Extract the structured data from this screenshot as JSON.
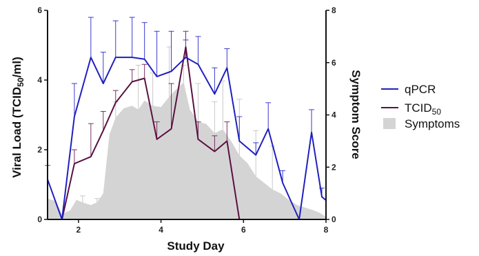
{
  "chart_data": {
    "type": "line",
    "xlabel": "Study Day",
    "ylabel_left": {
      "pre": "Viral Load (TCID",
      "sub": "50",
      "post": "/ml)"
    },
    "ylabel_right": "Symptom Score",
    "xlim": [
      1.25,
      8
    ],
    "ylim_left": [
      0,
      6
    ],
    "ylim_right": [
      0,
      8
    ],
    "x_ticks": [
      2,
      4,
      6,
      8
    ],
    "y_left_ticks": [
      0,
      2,
      4,
      6
    ],
    "y_right_ticks": [
      0,
      2,
      4,
      6,
      8
    ],
    "legend": [
      {
        "label": "qPCR",
        "sub": ""
      },
      {
        "label": "TCID",
        "sub": "50"
      },
      {
        "label": "Symptoms",
        "sub": ""
      }
    ],
    "colors": {
      "qpcr": "#1f1fbf",
      "tcid50": "#5a1040",
      "symptoms": "#d4d4d4",
      "qpcr_err": "#3a3ad0",
      "tcid_err": "#7a3060",
      "sym_err": "#c8c8c8"
    },
    "series": [
      {
        "name": "qPCR",
        "x": [
          1.25,
          1.6,
          1.9,
          2.3,
          2.6,
          2.9,
          3.3,
          3.6,
          3.9,
          4.25,
          4.6,
          4.9,
          5.3,
          5.6,
          5.9,
          6.3,
          6.6,
          6.95,
          7.35,
          7.65,
          7.9,
          8.0
        ],
        "values": [
          1.15,
          0,
          2.95,
          4.65,
          3.9,
          4.65,
          4.65,
          4.6,
          4.1,
          4.25,
          4.65,
          4.45,
          3.6,
          4.35,
          2.25,
          1.85,
          2.6,
          1.05,
          0,
          2.5,
          0.65,
          0.55
        ],
        "err": [
          0.4,
          0,
          0.95,
          1.15,
          0.9,
          1.05,
          1.15,
          1.05,
          1.3,
          1.15,
          0.5,
          0.8,
          0.75,
          0.55,
          0.7,
          0.35,
          0.75,
          0.35,
          0,
          0.65,
          0.25,
          0
        ]
      },
      {
        "name": "TCID50",
        "x": [
          1.6,
          1.9,
          2.3,
          2.6,
          2.9,
          3.3,
          3.6,
          3.9,
          4.25,
          4.6,
          4.9,
          5.3,
          5.6,
          5.9
        ],
        "values": [
          0,
          1.6,
          1.8,
          2.55,
          3.35,
          3.95,
          4.05,
          2.3,
          2.6,
          4.95,
          2.3,
          1.95,
          2.25,
          0
        ],
        "err": [
          0,
          0.4,
          0.95,
          0.55,
          0.35,
          0.35,
          0.4,
          0.5,
          1.3,
          0.45,
          0.5,
          0.45,
          0.55,
          0
        ]
      },
      {
        "name": "Symptoms",
        "x": [
          1.25,
          1.35,
          1.45,
          1.6,
          1.8,
          1.95,
          2.1,
          2.3,
          2.45,
          2.6,
          2.75,
          2.9,
          3.1,
          3.3,
          3.45,
          3.6,
          3.8,
          4.0,
          4.2,
          4.35,
          4.55,
          4.7,
          4.9,
          5.1,
          5.3,
          5.5,
          5.7,
          5.9,
          6.1,
          6.3,
          6.5,
          6.7,
          6.9,
          7.1,
          7.3,
          7.5,
          7.7,
          7.85,
          8.0
        ],
        "values": [
          0.8,
          0.75,
          0.7,
          0.2,
          0.35,
          0.75,
          0.65,
          0.55,
          0.65,
          1.0,
          3.25,
          3.9,
          4.25,
          4.35,
          4.2,
          4.55,
          4.35,
          4.3,
          4.7,
          4.95,
          5.25,
          4.2,
          3.75,
          3.65,
          3.3,
          3.45,
          3.0,
          2.45,
          2.15,
          1.65,
          1.4,
          1.15,
          1.0,
          0.75,
          0.55,
          0.45,
          0.35,
          0.25,
          0.1
        ],
        "err_x": [
          2.1,
          2.45,
          2.9,
          3.45,
          3.8,
          4.2,
          4.55,
          4.9,
          5.3,
          5.5,
          5.9,
          6.3,
          6.7
        ],
        "err_y": [
          0.9,
          0.8,
          4.5,
          5.9,
          5.6,
          6.6,
          5.9,
          5.2,
          4.5,
          5.3,
          4.6,
          3.4,
          2.8
        ]
      }
    ]
  }
}
